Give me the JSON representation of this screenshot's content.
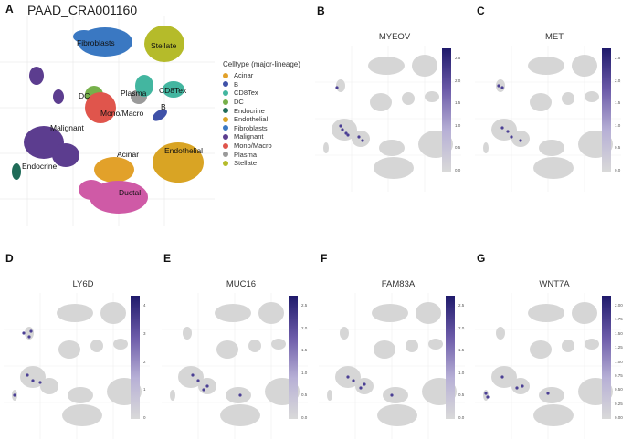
{
  "figure": {
    "panels": [
      {
        "letter": "A",
        "title": "PAAD_CRA001160"
      },
      {
        "letter": "B",
        "title": "MYEOV",
        "ticks": [
          "2.5",
          "2.0",
          "1.5",
          "1.0",
          "0.5",
          "0.0"
        ]
      },
      {
        "letter": "C",
        "title": "MET",
        "ticks": [
          "2.5",
          "2.0",
          "1.5",
          "1.0",
          "0.5",
          "0.0"
        ]
      },
      {
        "letter": "D",
        "title": "LY6D",
        "ticks": [
          "4",
          "3",
          "2",
          "1",
          "0"
        ]
      },
      {
        "letter": "E",
        "title": "MUC16",
        "ticks": [
          "2.5",
          "2.0",
          "1.5",
          "1.0",
          "0.5",
          "0.0"
        ]
      },
      {
        "letter": "F",
        "title": "FAM83A",
        "ticks": [
          "2.5",
          "2.0",
          "1.5",
          "1.0",
          "0.5",
          "0.0"
        ]
      },
      {
        "letter": "G",
        "title": "WNT7A",
        "ticks": [
          "2.00",
          "1.75",
          "1.50",
          "1.25",
          "1.00",
          "0.75",
          "0.50",
          "0.25",
          "0.00"
        ]
      }
    ]
  },
  "legend": {
    "title": "Celltype (major-lineage)",
    "items": [
      {
        "label": "Acinar",
        "color": "#e2a12a"
      },
      {
        "label": "B",
        "color": "#3f51a8"
      },
      {
        "label": "CD8Tex",
        "color": "#43b6a0"
      },
      {
        "label": "DC",
        "color": "#76b04a"
      },
      {
        "label": "Endocrine",
        "color": "#1f6b58"
      },
      {
        "label": "Endothelial",
        "color": "#d9a424"
      },
      {
        "label": "Fibroblasts",
        "color": "#3a78c2"
      },
      {
        "label": "Malignant",
        "color": "#5c3d8f"
      },
      {
        "label": "Mono/Macro",
        "color": "#e0554c"
      },
      {
        "label": "Plasma",
        "color": "#9a9a9a"
      },
      {
        "label": "Stellate",
        "color": "#b5bb2a"
      }
    ]
  },
  "umap_labels": {
    "fibroblasts": "Fibroblasts",
    "stellate": "Stellate",
    "dc": "DC",
    "plasma": "Plasma",
    "cd8tex": "CD8Tex",
    "mono": "Mono/Macro",
    "b": "B",
    "malignant": "Malignant",
    "acinar": "Acinar",
    "endothelial": "Endothelial",
    "endocrine": "Endocrine",
    "ductal": "Ductal"
  }
}
